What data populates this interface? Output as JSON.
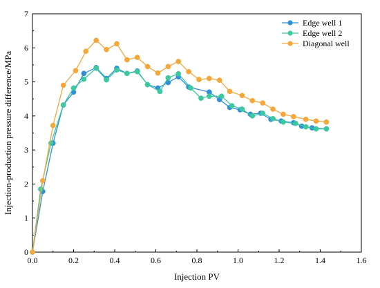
{
  "chart_data": {
    "type": "line",
    "xlabel": "Injection PV",
    "ylabel": "Injection-production pressure difference/MPa",
    "xlim": [
      0,
      1.6
    ],
    "ylim": [
      0,
      7
    ],
    "xticks": [
      "0.0",
      "0.2",
      "0.4",
      "0.6",
      "0.8",
      "1.0",
      "1.2",
      "1.4",
      "1.6"
    ],
    "yticks": [
      "0",
      "1",
      "2",
      "3",
      "4",
      "5",
      "6",
      "7"
    ],
    "grid": false,
    "legend_position": "top-right",
    "series": [
      {
        "name": "Edge well 1",
        "color": "#2f8fd8",
        "x": [
          0,
          0.05,
          0.1,
          0.15,
          0.2,
          0.25,
          0.31,
          0.36,
          0.41,
          0.46,
          0.51,
          0.56,
          0.61,
          0.66,
          0.71,
          0.76,
          0.86,
          0.91,
          0.96,
          1.01,
          1.06,
          1.11,
          1.16,
          1.21,
          1.27,
          1.31,
          1.36,
          1.43
        ],
        "y": [
          0,
          1.78,
          3.2,
          4.32,
          4.7,
          5.25,
          5.42,
          5.1,
          5.4,
          5.25,
          5.32,
          4.92,
          4.82,
          4.98,
          5.15,
          4.85,
          4.7,
          4.48,
          4.25,
          4.18,
          4.05,
          4.08,
          3.9,
          3.85,
          3.8,
          3.7,
          3.65,
          3.62
        ]
      },
      {
        "name": "Edge well 2",
        "color": "#3cc9a0",
        "x": [
          0,
          0.04,
          0.09,
          0.15,
          0.2,
          0.25,
          0.31,
          0.36,
          0.41,
          0.46,
          0.51,
          0.56,
          0.62,
          0.66,
          0.71,
          0.77,
          0.82,
          0.86,
          0.92,
          0.97,
          1.02,
          1.07,
          1.12,
          1.17,
          1.22,
          1.28,
          1.33,
          1.38,
          1.43
        ],
        "y": [
          0,
          1.85,
          3.2,
          4.32,
          4.82,
          5.08,
          5.4,
          5.06,
          5.35,
          5.25,
          5.3,
          4.92,
          4.72,
          5.12,
          5.24,
          4.82,
          4.52,
          4.58,
          4.58,
          4.3,
          4.2,
          4.0,
          4.08,
          3.92,
          3.82,
          3.78,
          3.68,
          3.62,
          3.62
        ]
      },
      {
        "name": "Diagonal well",
        "color": "#f5a73a",
        "x": [
          0,
          0.05,
          0.1,
          0.15,
          0.21,
          0.26,
          0.31,
          0.36,
          0.41,
          0.46,
          0.51,
          0.56,
          0.61,
          0.66,
          0.71,
          0.76,
          0.81,
          0.86,
          0.91,
          0.96,
          1.02,
          1.07,
          1.12,
          1.17,
          1.22,
          1.27,
          1.33,
          1.38,
          1.43
        ],
        "y": [
          0,
          2.1,
          3.72,
          4.9,
          5.33,
          5.9,
          6.22,
          5.95,
          6.12,
          5.65,
          5.72,
          5.45,
          5.26,
          5.45,
          5.6,
          5.3,
          5.07,
          5.1,
          5.05,
          4.72,
          4.6,
          4.45,
          4.38,
          4.2,
          4.05,
          3.98,
          3.9,
          3.85,
          3.82
        ]
      }
    ]
  }
}
